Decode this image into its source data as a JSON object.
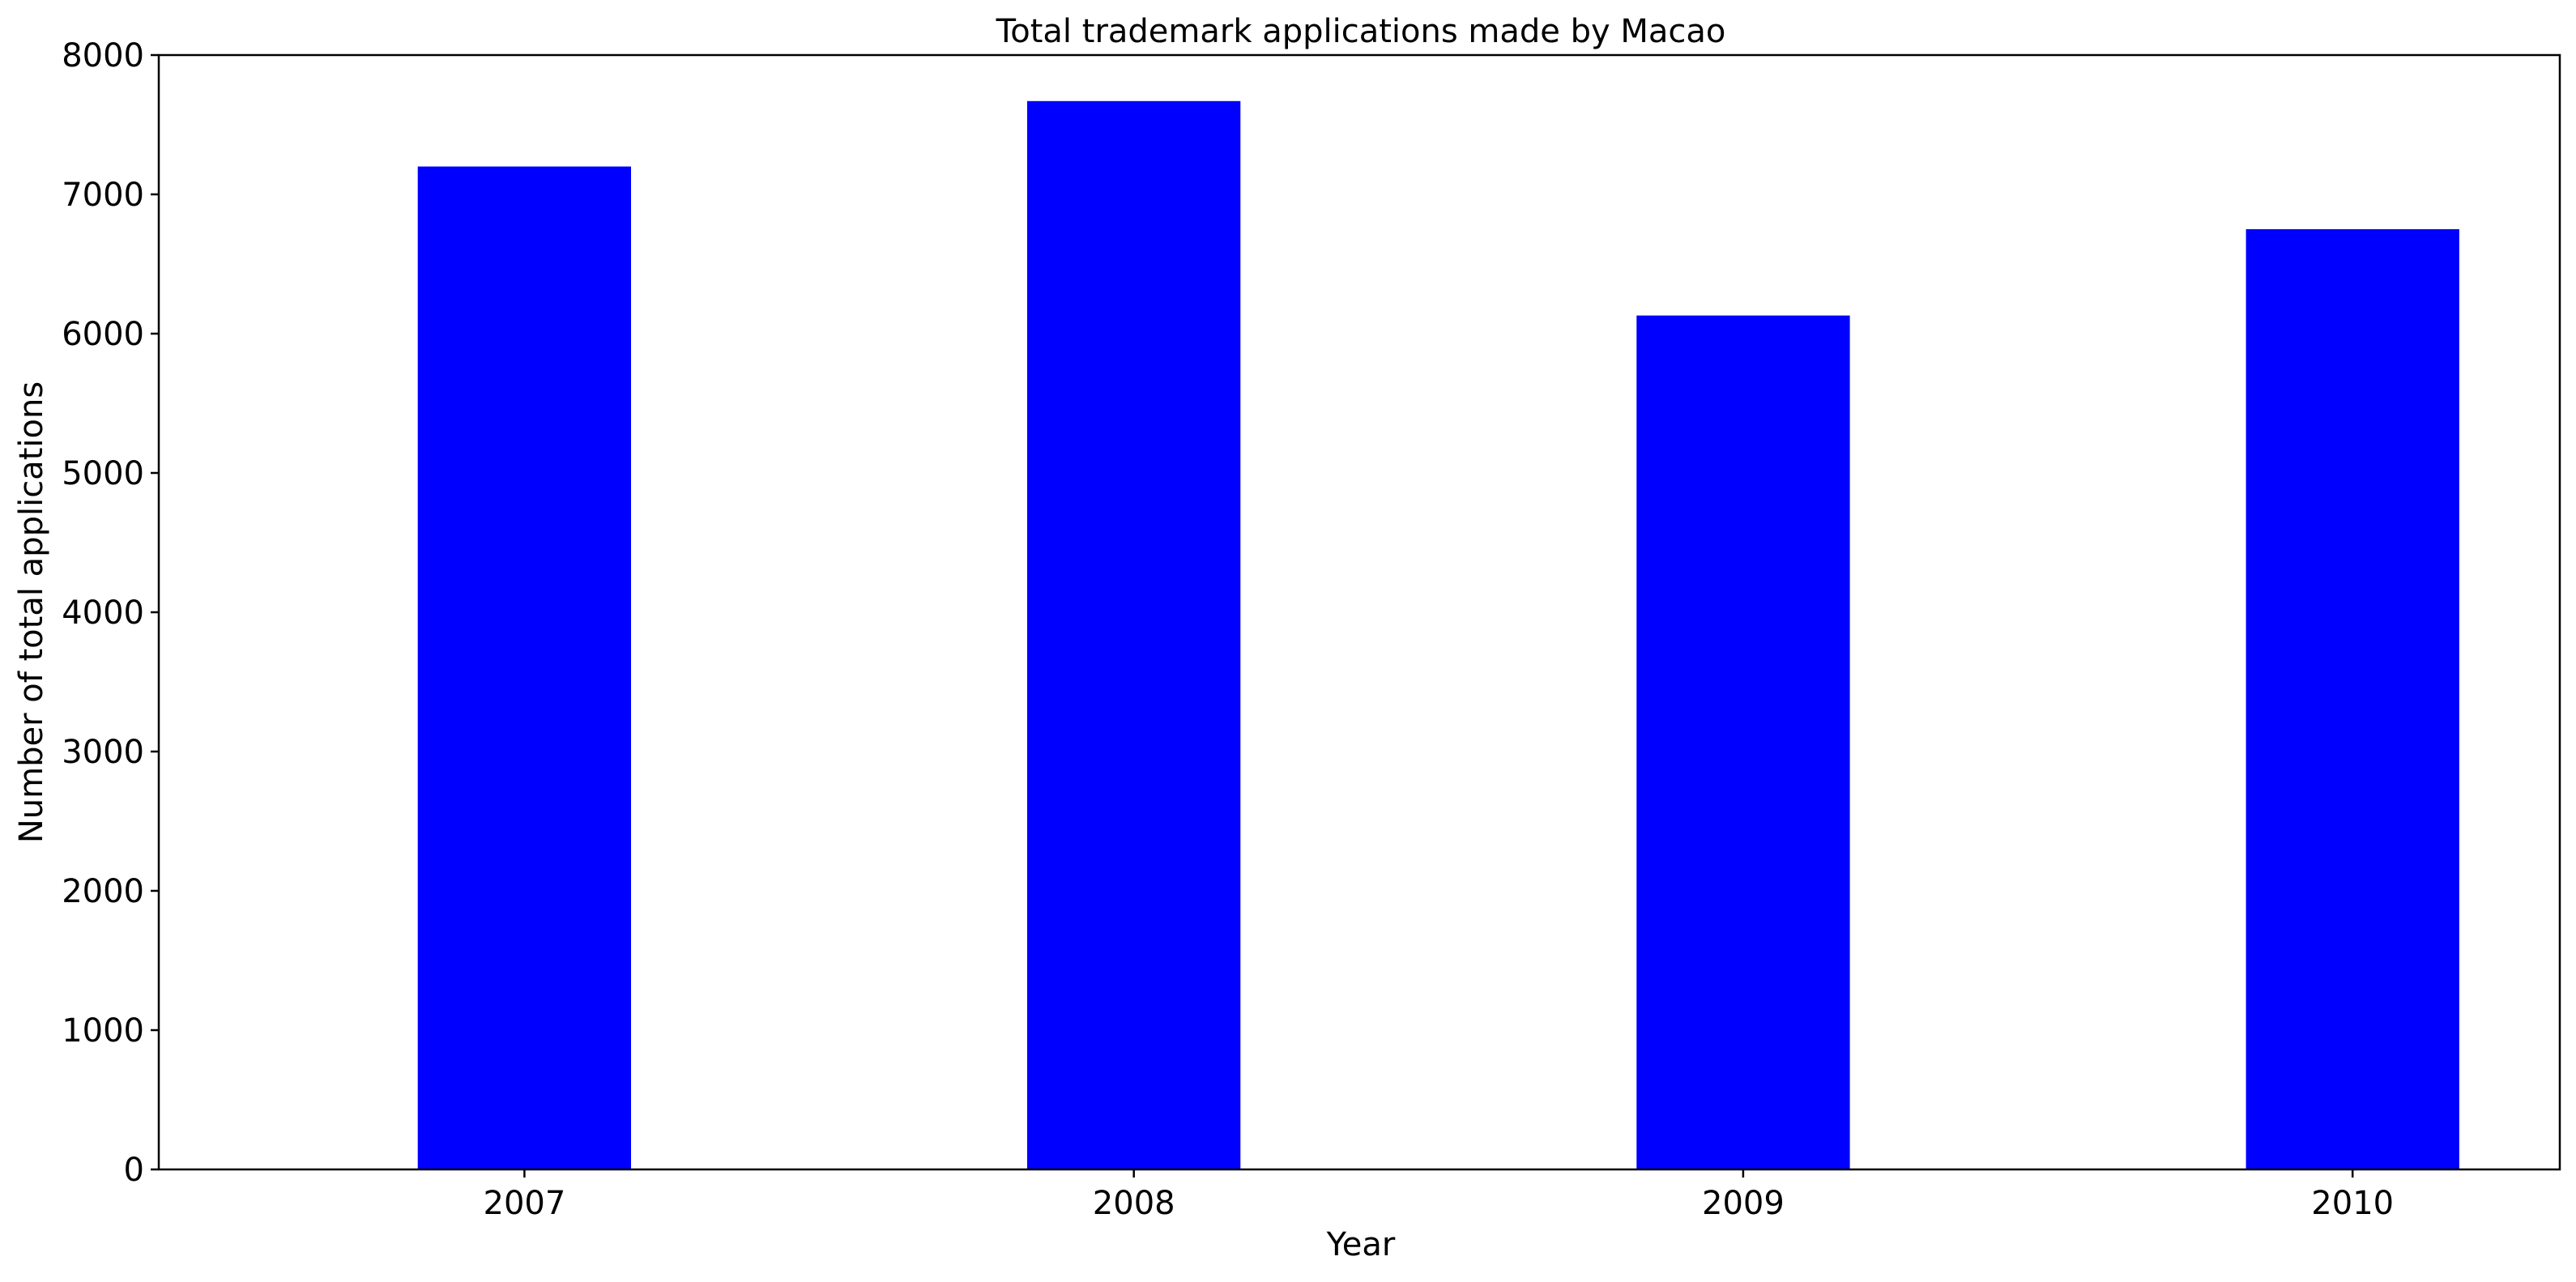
{
  "chart_data": {
    "type": "bar",
    "title": "Total trademark applications made by Macao",
    "xlabel": "Year",
    "ylabel": "Number of total applications",
    "categories": [
      "2007",
      "2008",
      "2009",
      "2010"
    ],
    "values": [
      7200,
      7670,
      6130,
      6750
    ],
    "ylim": [
      0,
      8000
    ],
    "yticks": [
      0,
      1000,
      2000,
      3000,
      4000,
      5000,
      6000,
      7000,
      8000
    ],
    "bar_color": "#0000ff",
    "grid": false,
    "legend": false
  }
}
